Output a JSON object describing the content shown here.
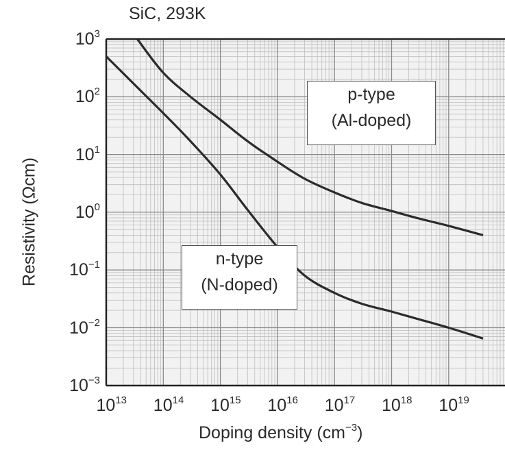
{
  "chart_data": {
    "type": "line",
    "title": "SiC, 293K",
    "xlabel": "Doping density (cm",
    "xlabel_exp": "−3",
    "xlabel_tail": ")",
    "ylabel": "Resistivity (Ωcm)",
    "xscale": "log",
    "yscale": "log",
    "xlim": [
      10000000000000.0,
      4e+19
    ],
    "ylim": [
      0.001,
      1000
    ],
    "grid": true,
    "x_ticks": [
      {
        "base": "10",
        "exp": "13",
        "value": 10000000000000.0
      },
      {
        "base": "10",
        "exp": "14",
        "value": 100000000000000.0
      },
      {
        "base": "10",
        "exp": "15",
        "value": 1000000000000000.0
      },
      {
        "base": "10",
        "exp": "16",
        "value": 1e+16
      },
      {
        "base": "10",
        "exp": "17",
        "value": 1e+17
      },
      {
        "base": "10",
        "exp": "18",
        "value": 1e+18
      },
      {
        "base": "10",
        "exp": "19",
        "value": 1e+19
      }
    ],
    "y_ticks": [
      {
        "base": "10",
        "exp": "3",
        "value": 1000
      },
      {
        "base": "10",
        "exp": "2",
        "value": 100
      },
      {
        "base": "10",
        "exp": "1",
        "value": 10
      },
      {
        "base": "10",
        "exp": "0",
        "value": 1
      },
      {
        "base": "10",
        "exp": "−1",
        "value": 0.1
      },
      {
        "base": "10",
        "exp": "−2",
        "value": 0.01
      },
      {
        "base": "10",
        "exp": "−3",
        "value": 0.001
      }
    ],
    "series": [
      {
        "name": "p-type (Al-doped)",
        "label_line1": "p-type",
        "label_line2": "(Al-doped)",
        "color": "#2b2b2b",
        "x": [
          35000000000000.0,
          100000000000000.0,
          300000000000000.0,
          1000000000000000.0,
          3000000000000000.0,
          1e+16,
          3e+16,
          1e+17,
          3e+17,
          1e+18,
          3e+18,
          1e+19,
          4e+19
        ],
        "y": [
          1000,
          260,
          100,
          40,
          17,
          7.5,
          3.8,
          2.2,
          1.45,
          1.05,
          0.78,
          0.58,
          0.4
        ]
      },
      {
        "name": "n-type (N-doped)",
        "label_line1": "n-type",
        "label_line2": "(N-doped)",
        "color": "#2b2b2b",
        "x": [
          10000000000000.0,
          30000000000000.0,
          100000000000000.0,
          300000000000000.0,
          1000000000000000.0,
          3000000000000000.0,
          1e+16,
          3e+16,
          1e+17,
          3e+17,
          1e+18,
          3e+18,
          1e+19,
          4e+19
        ],
        "y": [
          500,
          170,
          52,
          17,
          4.5,
          1.1,
          0.25,
          0.08,
          0.04,
          0.026,
          0.019,
          0.014,
          0.01,
          0.0065
        ]
      }
    ]
  }
}
